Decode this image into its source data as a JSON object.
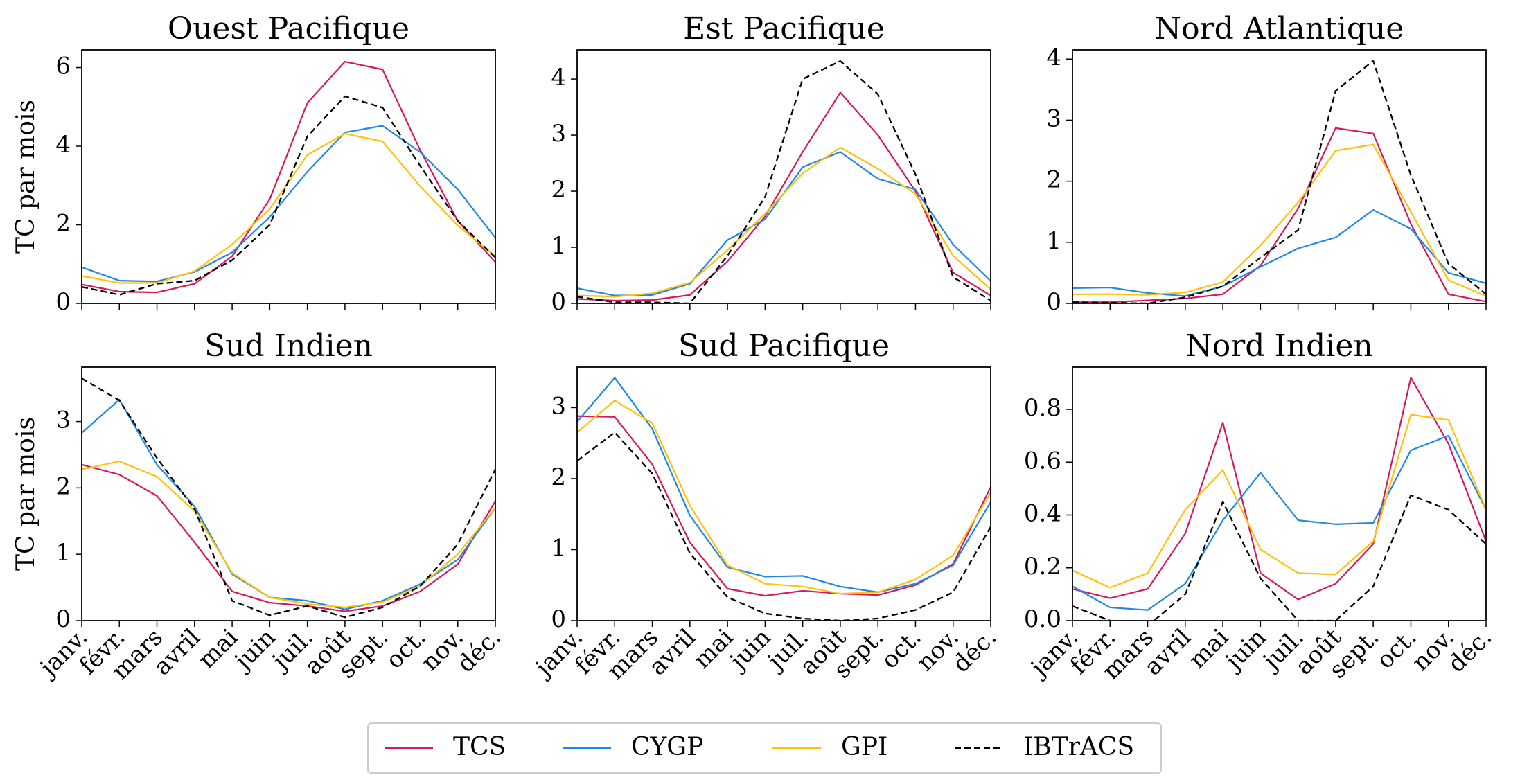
{
  "chart_data": {
    "type": "line",
    "ylabel": "TC par mois",
    "months": [
      "janv.",
      "févr.",
      "mars",
      "avril",
      "mai",
      "juin",
      "juil.",
      "août",
      "sept.",
      "oct.",
      "nov.",
      "déc."
    ],
    "series_styles": [
      {
        "name": "TCS",
        "color": "#d6195e",
        "dashed": false
      },
      {
        "name": "CYGP",
        "color": "#1e88e5",
        "dashed": false
      },
      {
        "name": "GPI",
        "color": "#ffc107",
        "dashed": false
      },
      {
        "name": "IBTrACS",
        "color": "#000000",
        "dashed": true
      }
    ],
    "panels": [
      {
        "title": "Ouest Pacifique",
        "ylim": [
          0,
          6.45
        ],
        "yticks": [
          "0",
          "2",
          "4",
          "6"
        ],
        "ytick_values": [
          0,
          2,
          4,
          6
        ],
        "series": [
          {
            "name": "TCS",
            "values": [
              0.48,
              0.3,
              0.28,
              0.5,
              1.2,
              2.65,
              5.1,
              6.15,
              5.95,
              3.9,
              2.1,
              1.05
            ]
          },
          {
            "name": "CYGP",
            "values": [
              0.92,
              0.58,
              0.56,
              0.8,
              1.3,
              2.2,
              3.35,
              4.35,
              4.52,
              3.85,
              2.9,
              1.67
            ]
          },
          {
            "name": "GPI",
            "values": [
              0.7,
              0.52,
              0.52,
              0.82,
              1.5,
              2.4,
              3.78,
              4.32,
              4.12,
              2.98,
              1.98,
              1.2
            ]
          },
          {
            "name": "IBTrACS",
            "values": [
              0.42,
              0.22,
              0.5,
              0.58,
              1.1,
              2.0,
              4.25,
              5.27,
              4.98,
              3.5,
              2.1,
              1.17
            ]
          }
        ]
      },
      {
        "title": "Est Pacifique",
        "ylim": [
          0,
          4.52
        ],
        "yticks": [
          "0",
          "1",
          "2",
          "3",
          "4"
        ],
        "ytick_values": [
          0,
          1,
          2,
          3,
          4
        ],
        "series": [
          {
            "name": "TCS",
            "values": [
              0.08,
              0.05,
              0.06,
              0.15,
              0.75,
              1.55,
              2.7,
              3.76,
              3.0,
              2.0,
              0.55,
              0.14
            ]
          },
          {
            "name": "CYGP",
            "values": [
              0.27,
              0.14,
              0.15,
              0.35,
              1.13,
              1.5,
              2.43,
              2.7,
              2.22,
              2.03,
              1.05,
              0.4
            ]
          },
          {
            "name": "GPI",
            "values": [
              0.14,
              0.12,
              0.18,
              0.37,
              0.95,
              1.6,
              2.32,
              2.78,
              2.4,
              1.95,
              0.85,
              0.25
            ]
          },
          {
            "name": "IBTrACS",
            "values": [
              0.12,
              0.02,
              0.02,
              0.0,
              0.85,
              1.9,
              4.0,
              4.32,
              3.73,
              2.3,
              0.47,
              0.05
            ]
          }
        ]
      },
      {
        "title": "Nord Atlantique",
        "ylim": [
          0,
          4.15
        ],
        "yticks": [
          "0",
          "1",
          "2",
          "3",
          "4"
        ],
        "ytick_values": [
          0,
          1,
          2,
          3,
          4
        ],
        "series": [
          {
            "name": "TCS",
            "values": [
              0.02,
              0.02,
              0.05,
              0.08,
              0.15,
              0.62,
              1.55,
              2.87,
              2.78,
              1.3,
              0.15,
              0.03
            ]
          },
          {
            "name": "CYGP",
            "values": [
              0.25,
              0.26,
              0.17,
              0.12,
              0.28,
              0.6,
              0.9,
              1.08,
              1.53,
              1.22,
              0.5,
              0.33
            ]
          },
          {
            "name": "GPI",
            "values": [
              0.15,
              0.15,
              0.14,
              0.18,
              0.35,
              0.95,
              1.65,
              2.5,
              2.6,
              1.5,
              0.38,
              0.12
            ]
          },
          {
            "name": "IBTrACS",
            "values": [
              0.02,
              0.01,
              0.0,
              0.1,
              0.28,
              0.75,
              1.2,
              3.48,
              3.97,
              2.1,
              0.65,
              0.15
            ]
          }
        ]
      },
      {
        "title": "Sud Indien",
        "ylim": [
          0,
          3.82
        ],
        "yticks": [
          "0",
          "1",
          "2",
          "3"
        ],
        "ytick_values": [
          0,
          1,
          2,
          3
        ],
        "series": [
          {
            "name": "TCS",
            "values": [
              2.35,
              2.2,
              1.88,
              1.18,
              0.44,
              0.27,
              0.22,
              0.14,
              0.22,
              0.44,
              0.85,
              1.8
            ]
          },
          {
            "name": "CYGP",
            "values": [
              2.83,
              3.33,
              2.35,
              1.72,
              0.7,
              0.35,
              0.3,
              0.17,
              0.3,
              0.55,
              0.92,
              1.7
            ]
          },
          {
            "name": "GPI",
            "values": [
              2.28,
              2.4,
              2.17,
              1.65,
              0.72,
              0.35,
              0.25,
              0.2,
              0.28,
              0.52,
              1.0,
              1.7
            ]
          },
          {
            "name": "IBTrACS",
            "values": [
              3.65,
              3.32,
              2.45,
              1.68,
              0.3,
              0.08,
              0.22,
              0.05,
              0.2,
              0.52,
              1.15,
              2.28
            ]
          }
        ]
      },
      {
        "title": "Sud Pacifique",
        "ylim": [
          0,
          3.57
        ],
        "yticks": [
          "0",
          "1",
          "2",
          "3"
        ],
        "ytick_values": [
          0,
          1,
          2,
          3
        ],
        "series": [
          {
            "name": "TCS",
            "values": [
              2.88,
              2.87,
              2.2,
              1.1,
              0.45,
              0.35,
              0.42,
              0.38,
              0.36,
              0.5,
              0.8,
              1.88
            ]
          },
          {
            "name": "CYGP",
            "values": [
              2.8,
              3.42,
              2.7,
              1.48,
              0.75,
              0.62,
              0.63,
              0.48,
              0.4,
              0.52,
              0.78,
              1.67
            ]
          },
          {
            "name": "GPI",
            "values": [
              2.65,
              3.1,
              2.78,
              1.62,
              0.78,
              0.52,
              0.48,
              0.38,
              0.4,
              0.58,
              0.92,
              1.8
            ]
          },
          {
            "name": "IBTrACS",
            "values": [
              2.25,
              2.65,
              2.07,
              0.95,
              0.33,
              0.1,
              0.03,
              0.0,
              0.03,
              0.15,
              0.4,
              1.32
            ]
          }
        ]
      },
      {
        "title": "Nord Indien",
        "ylim": [
          0,
          0.96
        ],
        "yticks": [
          "0.0",
          "0.2",
          "0.4",
          "0.6",
          "0.8"
        ],
        "ytick_values": [
          0,
          0.2,
          0.4,
          0.6,
          0.8
        ],
        "series": [
          {
            "name": "TCS",
            "values": [
              0.12,
              0.085,
              0.12,
              0.33,
              0.75,
              0.18,
              0.08,
              0.14,
              0.29,
              0.92,
              0.67,
              0.3
            ]
          },
          {
            "name": "CYGP",
            "values": [
              0.13,
              0.05,
              0.04,
              0.14,
              0.38,
              0.56,
              0.38,
              0.365,
              0.37,
              0.645,
              0.7,
              0.42
            ]
          },
          {
            "name": "GPI",
            "values": [
              0.19,
              0.125,
              0.18,
              0.42,
              0.57,
              0.27,
              0.18,
              0.175,
              0.3,
              0.78,
              0.76,
              0.42
            ]
          },
          {
            "name": "IBTrACS",
            "values": [
              0.055,
              0.0,
              -0.02,
              0.1,
              0.45,
              0.16,
              0.0,
              0.0,
              0.13,
              0.475,
              0.42,
              0.29
            ]
          }
        ]
      }
    ]
  }
}
